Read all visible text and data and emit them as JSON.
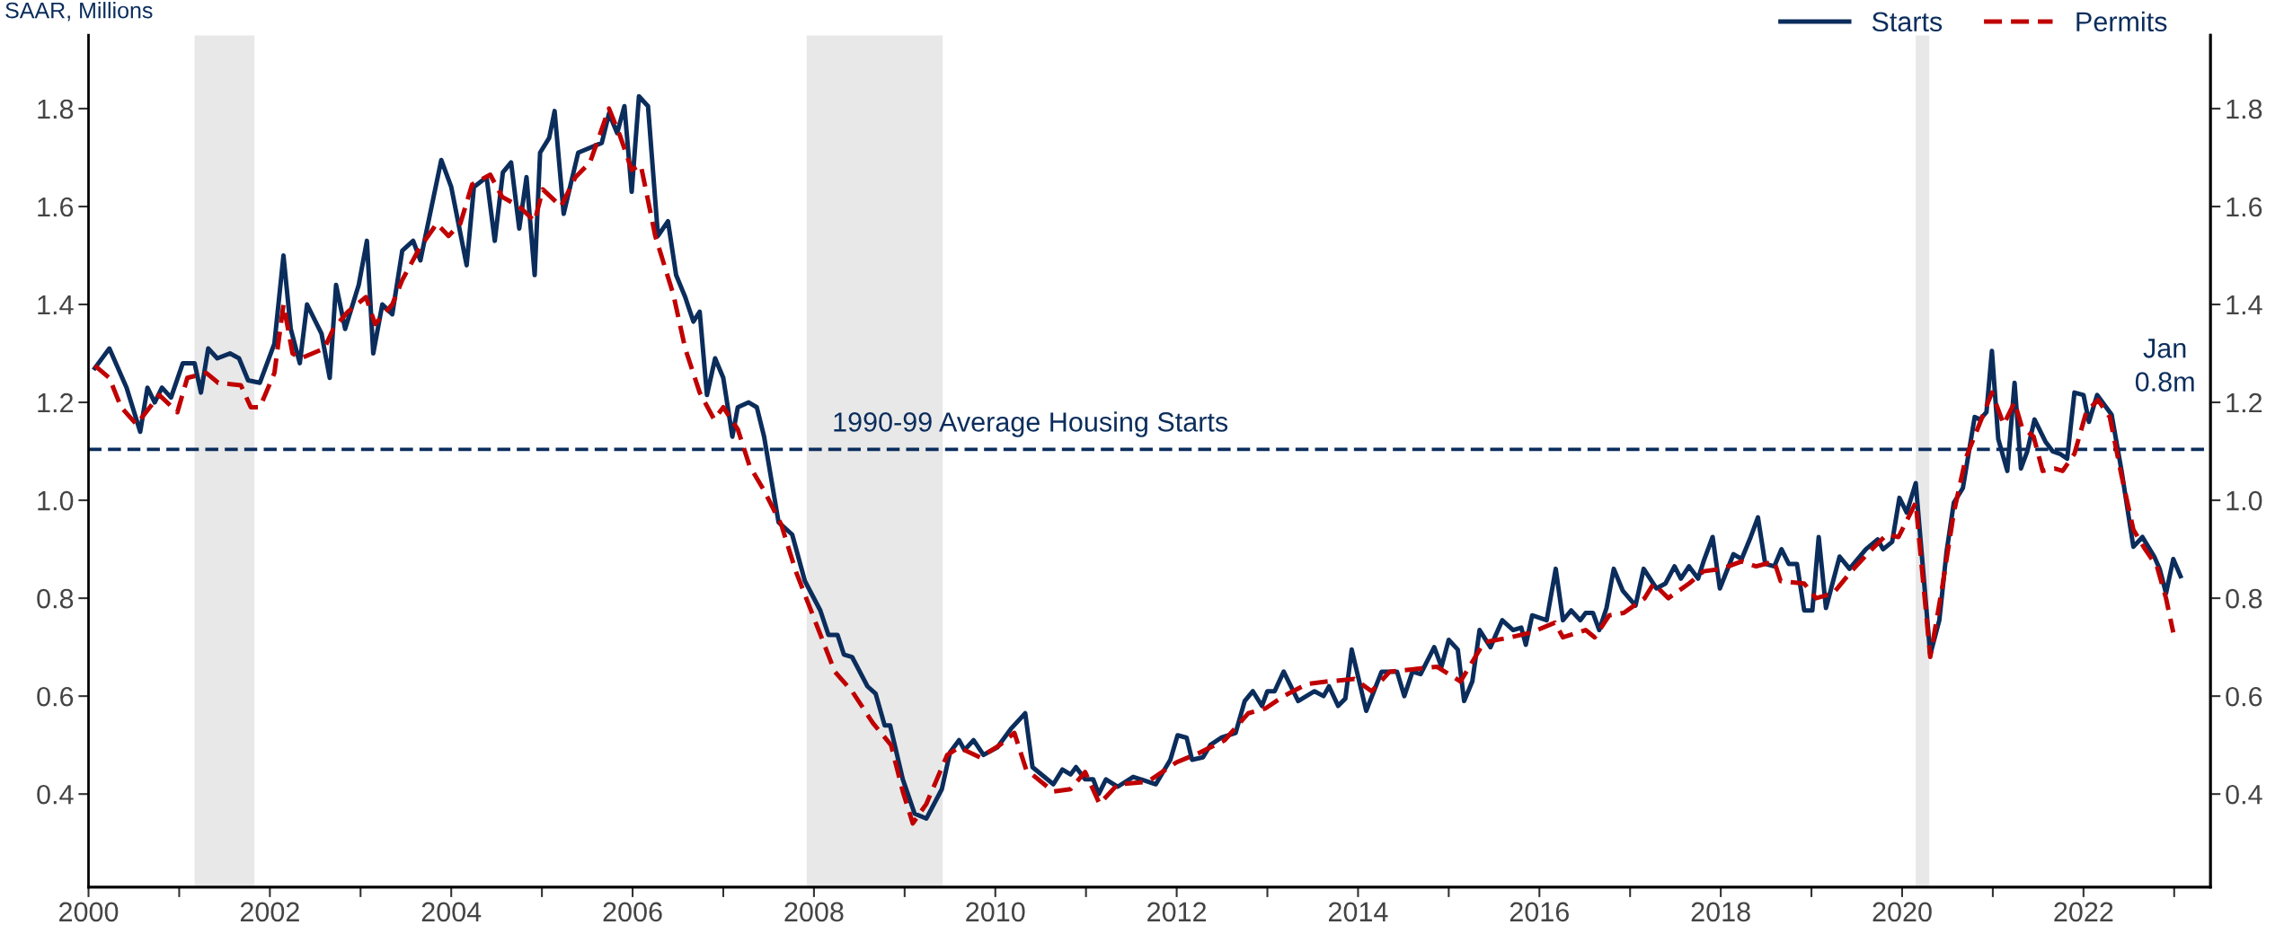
{
  "chart_data": {
    "type": "line",
    "ylabel": "SAAR, Millions",
    "xlim": [
      2000,
      2023.4
    ],
    "ylim": [
      0.21,
      1.95
    ],
    "y2lim": [
      0.21,
      1.95
    ],
    "xticks": [
      2000,
      {
        "value": 2001,
        "label": null
      },
      2002,
      {
        "value": 2003,
        "label": null
      },
      2004,
      {
        "value": 2005,
        "label": null
      },
      2006,
      {
        "value": 2007,
        "label": null
      },
      2008,
      {
        "value": 2009,
        "label": null
      },
      2010,
      {
        "value": 2011,
        "label": null
      },
      2012,
      {
        "value": 2013,
        "label": null
      },
      2014,
      {
        "value": 2015,
        "label": null
      },
      2016,
      {
        "value": 2017,
        "label": null
      },
      2018,
      {
        "value": 2019,
        "label": null
      },
      2020,
      {
        "value": 2021,
        "label": null
      },
      2022,
      {
        "value": 2023,
        "label": null
      }
    ],
    "yticks": [
      0.4,
      0.6,
      0.8,
      {
        "value": 1.0,
        "label": "1.0"
      },
      1.2,
      1.4,
      1.6,
      1.8
    ],
    "y2ticks": [
      0.4,
      0.6,
      0.8,
      {
        "value": 1.0,
        "label": "1.0"
      },
      1.2,
      1.4,
      1.6,
      1.8
    ],
    "legend": "top right",
    "grid": false,
    "series": [
      {
        "name": "Starts",
        "color": "#0b2d5c",
        "line_style": "solid",
        "x": [
          2000.07,
          2000.23,
          2000.42,
          2000.57,
          2000.65,
          2000.73,
          2000.81,
          2000.91,
          2001.04,
          2001.17,
          2001.24,
          2001.32,
          2001.42,
          2001.56,
          2001.66,
          2001.76,
          2001.89,
          2002.05,
          2002.15,
          2002.23,
          2002.33,
          2002.41,
          2002.57,
          2002.66,
          2002.73,
          2002.83,
          2002.98,
          2003.07,
          2003.14,
          2003.24,
          2003.35,
          2003.46,
          2003.58,
          2003.66,
          2003.89,
          2004.0,
          2004.17,
          2004.25,
          2004.39,
          2004.48,
          2004.57,
          2004.66,
          2004.75,
          2004.83,
          2004.92,
          2004.98,
          2005.08,
          2005.14,
          2005.24,
          2005.4,
          2005.66,
          2005.74,
          2005.83,
          2005.91,
          2005.99,
          2006.07,
          2006.17,
          2006.28,
          2006.39,
          2006.48,
          2006.58,
          2006.67,
          2006.74,
          2006.82,
          2006.91,
          2007.0,
          2007.1,
          2007.16,
          2007.28,
          2007.37,
          2007.45,
          2007.61,
          2007.76,
          2007.9,
          2008.07,
          2008.16,
          2008.26,
          2008.33,
          2008.42,
          2008.59,
          2008.68,
          2008.78,
          2008.84,
          2008.98,
          2009.11,
          2009.24,
          2009.41,
          2009.5,
          2009.6,
          2009.66,
          2009.76,
          2009.87,
          2010.02,
          2010.18,
          2010.33,
          2010.41,
          2010.64,
          2010.74,
          2010.83,
          2010.89,
          2010.99,
          2011.08,
          2011.14,
          2011.22,
          2011.35,
          2011.52,
          2011.77,
          2011.93,
          2012.01,
          2012.11,
          2012.17,
          2012.29,
          2012.37,
          2012.49,
          2012.65,
          2012.75,
          2012.84,
          2012.94,
          2013.0,
          2013.08,
          2013.18,
          2013.34,
          2013.52,
          2013.62,
          2013.68,
          2013.78,
          2013.86,
          2013.93,
          2014.09,
          2014.26,
          2014.43,
          2014.51,
          2014.6,
          2014.69,
          2014.84,
          2014.92,
          2015.0,
          2015.1,
          2015.17,
          2015.26,
          2015.34,
          2015.46,
          2015.59,
          2015.71,
          2015.8,
          2015.85,
          2015.92,
          2016.08,
          2016.18,
          2016.26,
          2016.35,
          2016.45,
          2016.51,
          2016.59,
          2016.66,
          2016.74,
          2016.82,
          2016.92,
          2017.06,
          2017.15,
          2017.29,
          2017.39,
          2017.49,
          2017.56,
          2017.65,
          2017.75,
          2017.81,
          2017.91,
          2017.99,
          2018.14,
          2018.23,
          2018.33,
          2018.41,
          2018.49,
          2018.59,
          2018.67,
          2018.75,
          2018.84,
          2018.92,
          2019.01,
          2019.08,
          2019.16,
          2019.31,
          2019.42,
          2019.6,
          2019.73,
          2019.79,
          2019.89,
          2019.97,
          2020.05,
          2020.15,
          2020.31,
          2020.41,
          2020.49,
          2020.57,
          2020.67,
          2020.8,
          2020.86,
          2020.93,
          2020.99,
          2021.06,
          2021.16,
          2021.24,
          2021.31,
          2021.38,
          2021.46,
          2021.58,
          2021.66,
          2021.74,
          2021.82,
          2021.9,
          2022.0,
          2022.06,
          2022.15,
          2022.31,
          2022.42,
          2022.55,
          2022.65,
          2022.78,
          2022.84,
          2022.91,
          2022.99,
          2023.07
        ],
        "values": [
          1.27,
          1.31,
          1.23,
          1.14,
          1.23,
          1.2,
          1.23,
          1.21,
          1.28,
          1.28,
          1.22,
          1.31,
          1.29,
          1.3,
          1.29,
          1.245,
          1.24,
          1.32,
          1.5,
          1.35,
          1.28,
          1.4,
          1.34,
          1.25,
          1.44,
          1.35,
          1.44,
          1.53,
          1.3,
          1.4,
          1.38,
          1.51,
          1.53,
          1.49,
          1.695,
          1.64,
          1.48,
          1.64,
          1.66,
          1.53,
          1.67,
          1.69,
          1.555,
          1.66,
          1.46,
          1.71,
          1.74,
          1.795,
          1.585,
          1.71,
          1.73,
          1.79,
          1.75,
          1.805,
          1.63,
          1.825,
          1.805,
          1.54,
          1.57,
          1.46,
          1.415,
          1.365,
          1.385,
          1.215,
          1.29,
          1.25,
          1.13,
          1.19,
          1.2,
          1.19,
          1.13,
          0.955,
          0.93,
          0.835,
          0.775,
          0.725,
          0.725,
          0.685,
          0.68,
          0.62,
          0.605,
          0.54,
          0.54,
          0.43,
          0.36,
          0.35,
          0.41,
          0.485,
          0.51,
          0.49,
          0.51,
          0.48,
          0.495,
          0.535,
          0.565,
          0.455,
          0.42,
          0.45,
          0.44,
          0.455,
          0.43,
          0.43,
          0.4,
          0.43,
          0.415,
          0.435,
          0.42,
          0.47,
          0.52,
          0.515,
          0.47,
          0.475,
          0.5,
          0.515,
          0.525,
          0.59,
          0.61,
          0.58,
          0.61,
          0.61,
          0.65,
          0.59,
          0.61,
          0.6,
          0.62,
          0.58,
          0.595,
          0.695,
          0.57,
          0.65,
          0.65,
          0.6,
          0.65,
          0.645,
          0.7,
          0.66,
          0.715,
          0.695,
          0.59,
          0.63,
          0.735,
          0.7,
          0.755,
          0.735,
          0.74,
          0.705,
          0.765,
          0.755,
          0.86,
          0.755,
          0.775,
          0.755,
          0.77,
          0.77,
          0.735,
          0.78,
          0.86,
          0.815,
          0.785,
          0.86,
          0.82,
          0.83,
          0.865,
          0.84,
          0.865,
          0.84,
          0.875,
          0.925,
          0.82,
          0.89,
          0.88,
          0.925,
          0.965,
          0.87,
          0.865,
          0.9,
          0.87,
          0.87,
          0.775,
          0.775,
          0.925,
          0.78,
          0.885,
          0.86,
          0.9,
          0.92,
          0.9,
          0.915,
          1.005,
          0.975,
          1.035,
          0.685,
          0.755,
          0.895,
          0.995,
          1.025,
          1.17,
          1.165,
          1.18,
          1.305,
          1.125,
          1.06,
          1.24,
          1.065,
          1.1,
          1.165,
          1.12,
          1.1,
          1.095,
          1.085,
          1.22,
          1.215,
          1.16,
          1.215,
          1.175,
          1.06,
          0.905,
          0.925,
          0.885,
          0.86,
          0.81,
          0.88,
          0.845
        ]
      },
      {
        "name": "Permits",
        "color": "#c00000",
        "line_style": "dashed",
        "x": [
          2000.07,
          2000.23,
          2000.36,
          2000.53,
          2000.78,
          2000.98,
          2001.09,
          2001.3,
          2001.43,
          2001.68,
          2001.79,
          2001.89,
          2002.05,
          2002.15,
          2002.25,
          2002.34,
          2002.6,
          2002.7,
          2002.86,
          2003.06,
          2003.16,
          2003.35,
          2003.46,
          2003.65,
          2003.84,
          2003.97,
          2004.1,
          2004.23,
          2004.43,
          2004.56,
          2004.75,
          2004.92,
          2005.01,
          2005.21,
          2005.37,
          2005.53,
          2005.74,
          2005.86,
          2005.99,
          2006.09,
          2006.25,
          2006.45,
          2006.58,
          2006.74,
          2006.9,
          2007.0,
          2007.16,
          2007.29,
          2007.45,
          2007.64,
          2007.8,
          2008.03,
          2008.23,
          2008.42,
          2008.65,
          2008.85,
          2008.98,
          2009.09,
          2009.24,
          2009.47,
          2009.6,
          2009.83,
          2010.05,
          2010.21,
          2010.34,
          2010.64,
          2010.83,
          2010.99,
          2011.15,
          2011.35,
          2011.68,
          2012.0,
          2012.26,
          2012.53,
          2012.79,
          2012.98,
          2013.18,
          2013.44,
          2013.67,
          2013.96,
          2014.15,
          2014.35,
          2014.61,
          2014.87,
          2015.13,
          2015.39,
          2015.68,
          2015.91,
          2016.17,
          2016.26,
          2016.51,
          2016.61,
          2016.77,
          2016.93,
          2017.16,
          2017.26,
          2017.42,
          2017.65,
          2017.81,
          2018.01,
          2018.23,
          2018.39,
          2018.59,
          2018.66,
          2018.92,
          2019.05,
          2019.24,
          2019.44,
          2019.64,
          2019.83,
          2019.96,
          2020.15,
          2020.31,
          2020.44,
          2020.57,
          2020.7,
          2020.83,
          2020.99,
          2021.12,
          2021.24,
          2021.32,
          2021.45,
          2021.55,
          2021.68,
          2021.77,
          2021.9,
          2022.03,
          2022.16,
          2022.29,
          2022.42,
          2022.55,
          2022.68,
          2022.81,
          2022.91,
          2022.99
        ],
        "values": [
          1.275,
          1.25,
          1.19,
          1.155,
          1.215,
          1.18,
          1.25,
          1.26,
          1.24,
          1.235,
          1.19,
          1.19,
          1.26,
          1.4,
          1.3,
          1.29,
          1.31,
          1.35,
          1.385,
          1.415,
          1.36,
          1.4,
          1.45,
          1.515,
          1.565,
          1.54,
          1.565,
          1.645,
          1.665,
          1.62,
          1.6,
          1.57,
          1.635,
          1.6,
          1.66,
          1.69,
          1.8,
          1.745,
          1.675,
          1.685,
          1.54,
          1.42,
          1.31,
          1.22,
          1.165,
          1.19,
          1.145,
          1.07,
          1.02,
          0.95,
          0.855,
          0.745,
          0.65,
          0.61,
          0.545,
          0.5,
          0.405,
          0.34,
          0.38,
          0.48,
          0.495,
          0.475,
          0.5,
          0.525,
          0.45,
          0.405,
          0.41,
          0.445,
          0.38,
          0.42,
          0.425,
          0.465,
          0.485,
          0.51,
          0.565,
          0.575,
          0.6,
          0.625,
          0.63,
          0.635,
          0.61,
          0.65,
          0.655,
          0.66,
          0.63,
          0.71,
          0.72,
          0.73,
          0.75,
          0.72,
          0.735,
          0.72,
          0.765,
          0.77,
          0.8,
          0.83,
          0.8,
          0.83,
          0.855,
          0.86,
          0.875,
          0.865,
          0.875,
          0.835,
          0.83,
          0.8,
          0.81,
          0.855,
          0.895,
          0.93,
          0.925,
          0.995,
          0.68,
          0.82,
          0.975,
          1.085,
          1.145,
          1.22,
          1.155,
          1.2,
          1.15,
          1.13,
          1.06,
          1.065,
          1.06,
          1.095,
          1.18,
          1.205,
          1.17,
          1.05,
          0.94,
          0.9,
          0.865,
          0.8,
          0.73
        ]
      }
    ],
    "ref_lines": [
      {
        "axis": "y",
        "value": 1.104,
        "label": "1990-99 Average Housing Starts",
        "color": "#0b2d5c",
        "line_style": "dashed"
      }
    ],
    "bands": [
      {
        "axis": "x",
        "from": 2001.17,
        "to": 2001.83,
        "color": "#e8e8e8"
      },
      {
        "axis": "x",
        "from": 2007.92,
        "to": 2009.42,
        "color": "#e8e8e8"
      },
      {
        "axis": "x",
        "from": 2020.15,
        "to": 2020.3,
        "color": "#e8e8e8"
      }
    ],
    "annotations": [
      "Jan\n0.8m"
    ]
  }
}
